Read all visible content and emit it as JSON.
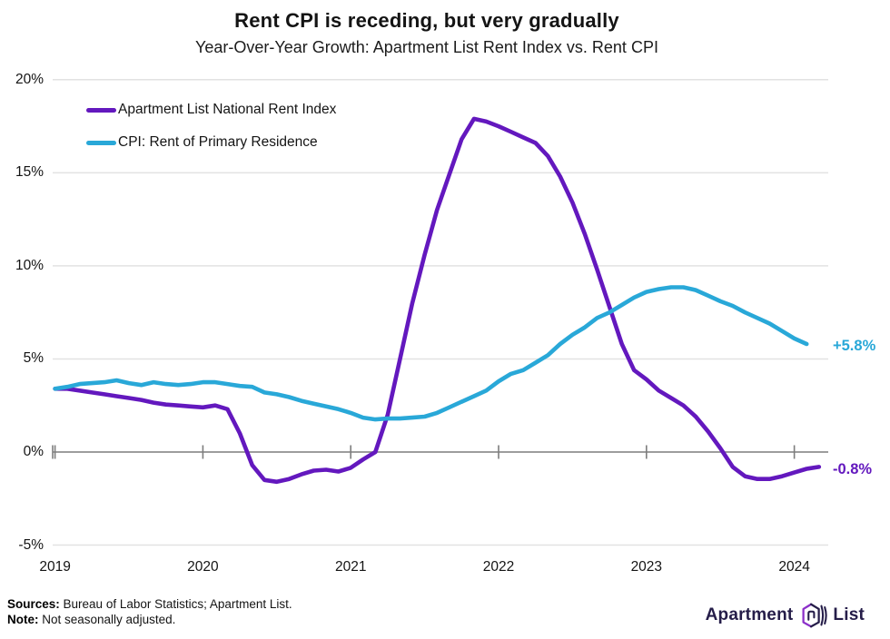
{
  "header": {
    "title": "Rent CPI is receding, but very gradually",
    "subtitle": "Year-Over-Year Growth: Apartment List Rent Index vs. Rent CPI"
  },
  "annotations": {
    "cpi_end_label": "+5.8%",
    "al_end_label": "-0.8%"
  },
  "footer": {
    "sources_label": "Sources:",
    "sources_text": " Bureau of Labor Statistics; Apartment List.",
    "note_label": "Note:",
    "note_text": " Not seasonally adjusted."
  },
  "logo": {
    "word_left": "Apartment",
    "word_right": "List"
  },
  "colors": {
    "apartment_list_purple": "#6318be",
    "cpi_cyan": "#29a8d8",
    "zero_axis_gray": "#7d7d7d",
    "grid_gray": "#e2e2e2"
  },
  "chart_data": {
    "type": "line",
    "title": "Rent CPI is receding, but very gradually",
    "subtitle": "Year-Over-Year Growth: Apartment List Rent Index vs. Rent CPI",
    "x_start": "2019-01",
    "x_step_months": 1,
    "x_domain": [
      "2019-01",
      "2024-03"
    ],
    "ylim": [
      -5,
      20
    ],
    "grid": true,
    "legend_position": "top-left",
    "y_ticks": [
      {
        "value": 20,
        "label": "20%"
      },
      {
        "value": 15,
        "label": "15%"
      },
      {
        "value": 10,
        "label": "10%"
      },
      {
        "value": 5,
        "label": "5%"
      },
      {
        "value": 0,
        "label": "0%"
      },
      {
        "value": -5,
        "label": "-5%"
      }
    ],
    "x_ticks": [
      {
        "year": 2019,
        "label": "2019"
      },
      {
        "year": 2020,
        "label": "2020"
      },
      {
        "year": 2021,
        "label": "2021"
      },
      {
        "year": 2022,
        "label": "2022"
      },
      {
        "year": 2023,
        "label": "2023"
      },
      {
        "year": 2024,
        "label": "2024"
      }
    ],
    "series": [
      {
        "name": "Apartment List National Rent Index",
        "color": "#6318be",
        "end_label": "-0.8%",
        "values": [
          3.4,
          3.4,
          3.3,
          3.2,
          3.1,
          3.0,
          2.9,
          2.8,
          2.65,
          2.55,
          2.5,
          2.45,
          2.4,
          2.5,
          2.3,
          1.0,
          -0.7,
          -1.5,
          -1.6,
          -1.45,
          -1.2,
          -1.0,
          -0.95,
          -1.05,
          -0.85,
          -0.4,
          0.0,
          2.0,
          5.0,
          8.0,
          10.6,
          13.0,
          14.9,
          16.8,
          17.9,
          17.75,
          17.5,
          17.2,
          16.9,
          16.6,
          15.9,
          14.8,
          13.4,
          11.7,
          9.8,
          7.8,
          5.8,
          4.4,
          3.9,
          3.3,
          2.9,
          2.5,
          1.9,
          1.1,
          0.2,
          -0.8,
          -1.3,
          -1.45,
          -1.45,
          -1.3,
          -1.1,
          -0.9,
          -0.8
        ]
      },
      {
        "name": "CPI: Rent of Primary Residence",
        "color": "#29a8d8",
        "end_label": "+5.8%",
        "values": [
          3.4,
          3.5,
          3.65,
          3.7,
          3.75,
          3.85,
          3.7,
          3.6,
          3.75,
          3.65,
          3.6,
          3.65,
          3.75,
          3.75,
          3.65,
          3.55,
          3.5,
          3.2,
          3.1,
          2.95,
          2.75,
          2.6,
          2.45,
          2.3,
          2.1,
          1.85,
          1.75,
          1.8,
          1.8,
          1.85,
          1.9,
          2.1,
          2.4,
          2.7,
          3.0,
          3.3,
          3.8,
          4.2,
          4.4,
          4.8,
          5.2,
          5.8,
          6.3,
          6.7,
          7.2,
          7.5,
          7.9,
          8.3,
          8.6,
          8.75,
          8.85,
          8.85,
          8.7,
          8.4,
          8.1,
          7.85,
          7.5,
          7.2,
          6.9,
          6.5,
          6.1,
          5.8
        ]
      }
    ]
  }
}
